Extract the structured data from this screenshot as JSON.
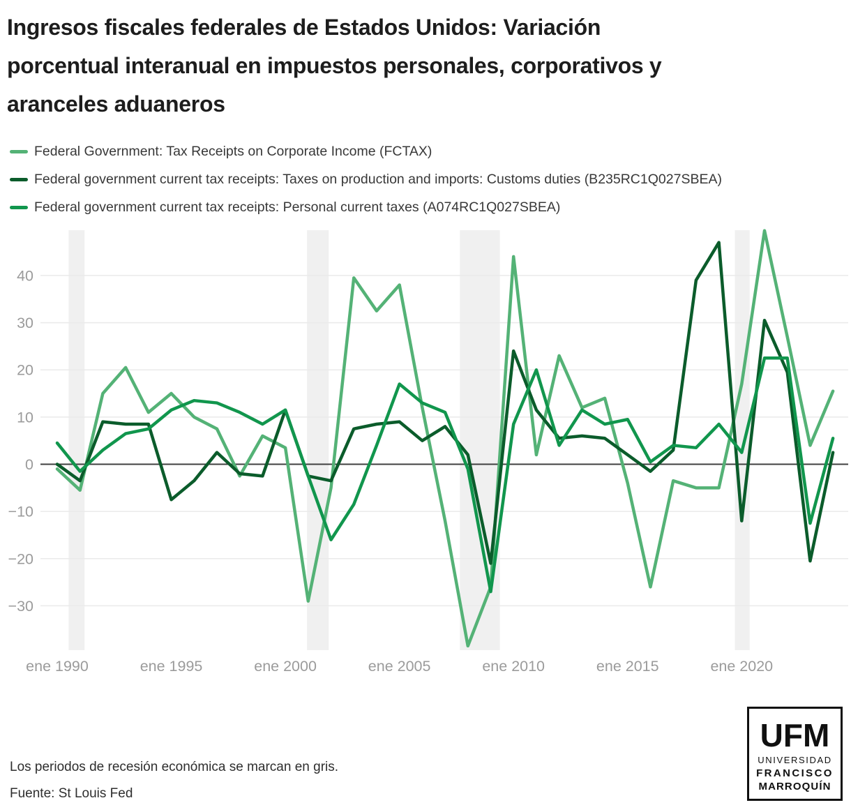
{
  "title_lines": [
    "Ingresos fiscales federales de Estados Unidos: Variación",
    "porcentual interanual en impuestos personales, corporativos y",
    "aranceles aduaneros"
  ],
  "legend": {
    "items": [
      {
        "label": "Federal Government: Tax Receipts on Corporate Income (FCTAX)",
        "color": "#54b276"
      },
      {
        "label": "Federal government current tax receipts: Taxes on production and imports: Customs duties (B235RC1Q027SBEA)",
        "color": "#0b5c2b"
      },
      {
        "label": "Federal government current tax receipts: Personal current taxes (A074RC1Q027SBEA)",
        "color": "#11964d"
      }
    ]
  },
  "chart_data": {
    "type": "line",
    "x": [
      1990,
      1991,
      1992,
      1993,
      1994,
      1995,
      1996,
      1997,
      1998,
      1999,
      2000,
      2001,
      2002,
      2003,
      2004,
      2005,
      2006,
      2007,
      2008,
      2009,
      2010,
      2011,
      2012,
      2013,
      2014,
      2015,
      2016,
      2017,
      2018,
      2019,
      2020,
      2021,
      2022,
      2023,
      2024
    ],
    "series": [
      {
        "name": "Federal Government: Tax Receipts on Corporate Income (FCTAX)",
        "color": "#54b276",
        "values": [
          -1,
          -5.5,
          15,
          20.5,
          11,
          15,
          10,
          7.5,
          -2.5,
          6,
          3.5,
          -29,
          -5,
          39.5,
          32.5,
          38,
          12,
          -12,
          -38.5,
          -26,
          44,
          2,
          23,
          12,
          14,
          -4,
          -26,
          -3.5,
          -5,
          -5,
          17,
          49.5,
          27,
          4,
          15.5
        ]
      },
      {
        "name": "Federal government current tax receipts: Taxes on production and imports: Customs duties (B235RC1Q027SBEA)",
        "color": "#0b5c2b",
        "values": [
          0,
          -3.5,
          9,
          8.5,
          8.5,
          -7.5,
          -3.5,
          2.5,
          -2,
          -2.5,
          11.5,
          -2.5,
          -3.5,
          7.5,
          8.5,
          9,
          5,
          8,
          2,
          -21,
          24,
          11.5,
          5.5,
          6,
          5.5,
          2,
          -1.5,
          3,
          39,
          47,
          -12,
          30.5,
          19.5,
          -20.5,
          2.5
        ]
      },
      {
        "name": "Federal government current tax receipts: Personal current taxes (A074RC1Q027SBEA)",
        "color": "#11964d",
        "values": [
          4.5,
          -1.5,
          3,
          6.5,
          7.5,
          11.5,
          13.5,
          13,
          11,
          8.5,
          11.5,
          -2.5,
          -16,
          -8.5,
          4,
          17,
          13,
          11,
          -1,
          -27,
          8.5,
          20,
          4,
          11.5,
          8.5,
          9.5,
          0.5,
          4,
          3.5,
          8.5,
          2.5,
          22.5,
          22.5,
          -12.5,
          5.5
        ]
      }
    ],
    "ylabel": "",
    "xlabel": "",
    "ylim": [
      -39.4,
      49.6
    ],
    "grid": true,
    "legend_position": "top-left",
    "yticks": [
      {
        "value": 40,
        "label": "40"
      },
      {
        "value": 30,
        "label": "30"
      },
      {
        "value": 20,
        "label": "20"
      },
      {
        "value": 10,
        "label": "10"
      },
      {
        "value": 0,
        "label": "0"
      },
      {
        "value": -10,
        "label": "−10"
      },
      {
        "value": -20,
        "label": "−20"
      },
      {
        "value": -30,
        "label": "−30"
      }
    ],
    "xticks": [
      {
        "year": 1990,
        "label": "ene 1990"
      },
      {
        "year": 1995,
        "label": "ene 1995"
      },
      {
        "year": 2000,
        "label": "ene 2000"
      },
      {
        "year": 2005,
        "label": "ene 2005"
      },
      {
        "year": 2010,
        "label": "ene 2010"
      },
      {
        "year": 2015,
        "label": "ene 2015"
      },
      {
        "year": 2020,
        "label": "ene 2020"
      },
      {
        "year": 2025,
        "label": ""
      }
    ],
    "recessions": [
      [
        1990.5,
        1991.2
      ],
      [
        2000.95,
        2001.9
      ],
      [
        2007.65,
        2009.4
      ],
      [
        2019.7,
        2020.35
      ]
    ]
  },
  "colors": {
    "recession_band": "#f0f0f0",
    "gridline": "#eaeaea",
    "zero_line": "#3f3f3f",
    "axis_text": "#9b9b9b"
  },
  "footnotes": [
    "Los periodos de recesión económica se marcan en gris.",
    "Fuente: St Louis Fed"
  ],
  "logo": {
    "line1": "UFM",
    "line2": "UNIVERSIDAD",
    "line3": "FRANCISCO",
    "line4": "MARROQUÍN"
  }
}
